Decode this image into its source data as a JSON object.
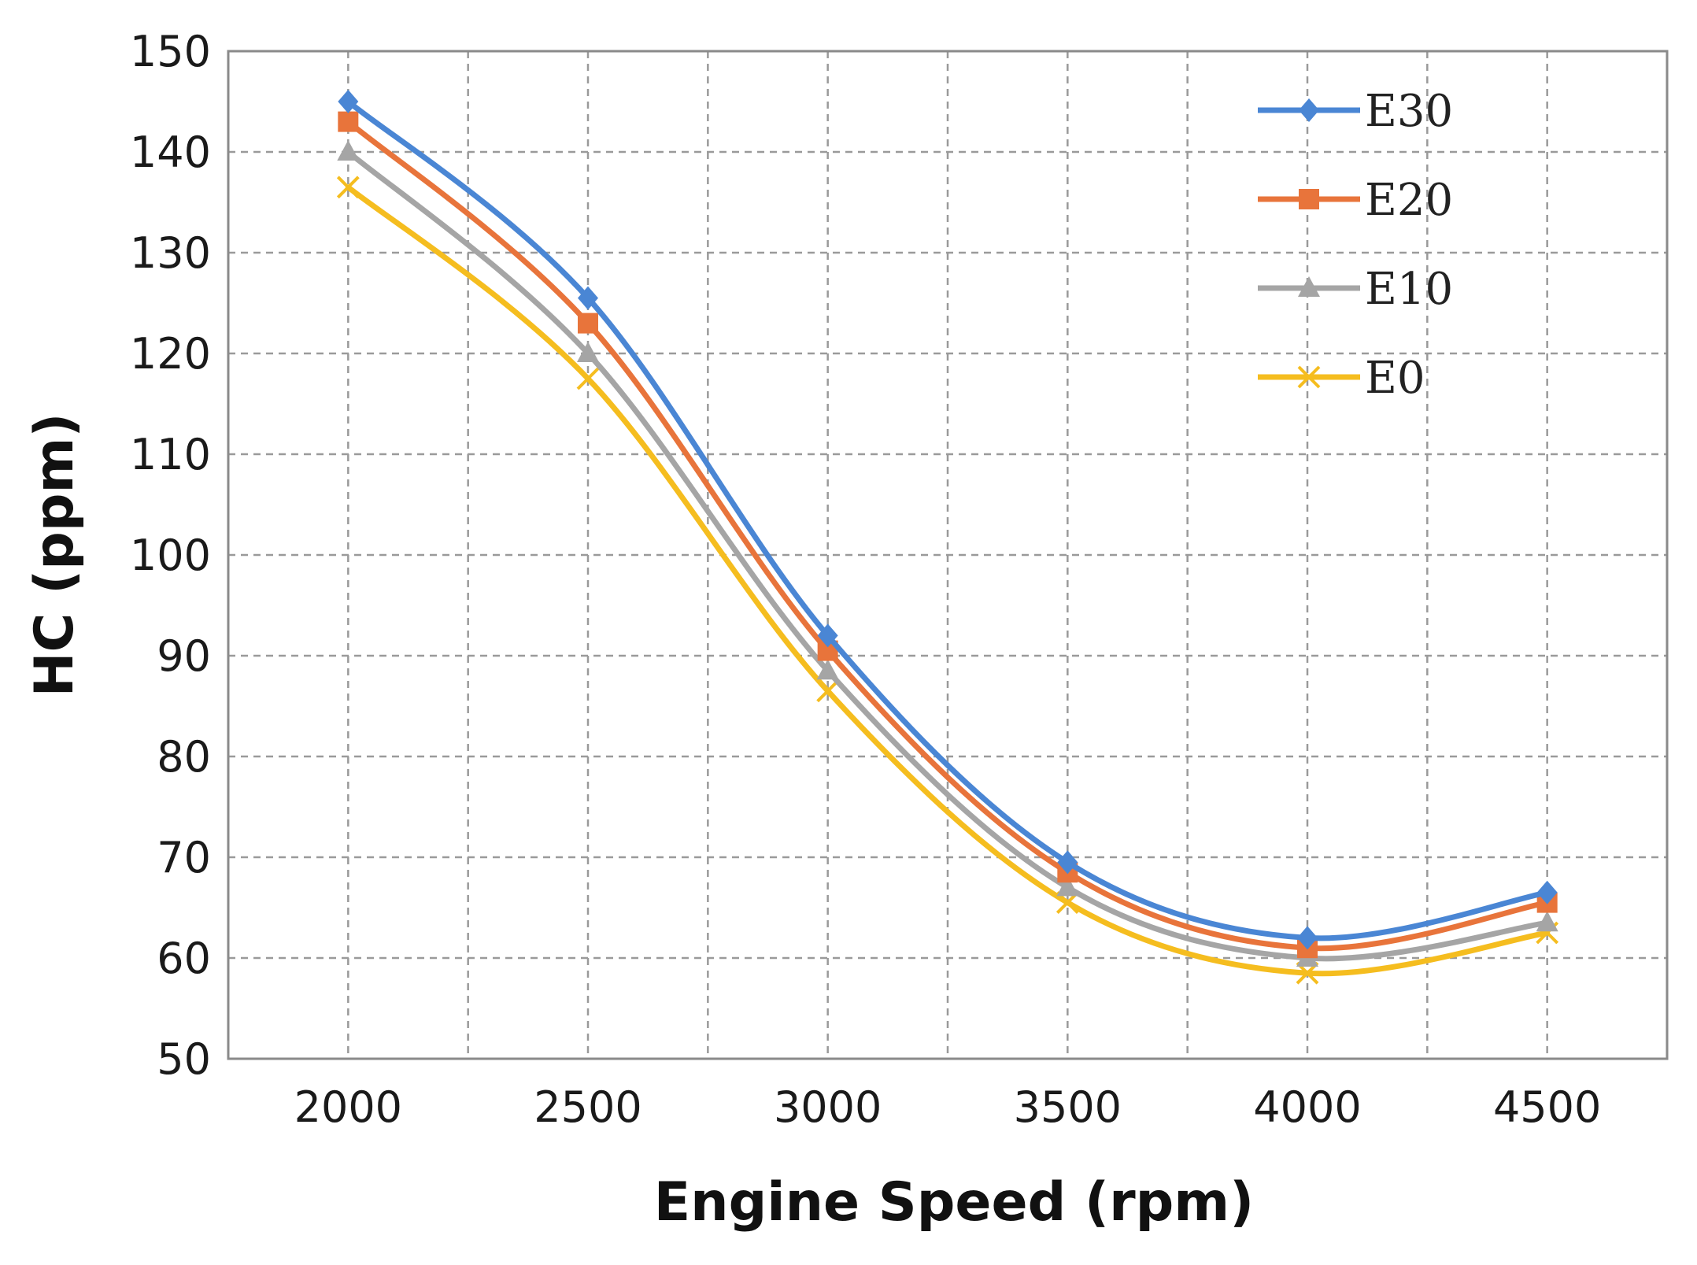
{
  "chart_data": {
    "type": "line",
    "title": "",
    "xlabel": "Engine Speed (rpm)",
    "ylabel": "HC (ppm)",
    "x": [
      2000,
      2500,
      3000,
      3500,
      4000,
      4500
    ],
    "x_tick_labels": [
      "2000",
      "2500",
      "3000",
      "3500",
      "4000",
      "4500"
    ],
    "xlim": [
      1750,
      4750
    ],
    "ylim": [
      50,
      150
    ],
    "y_ticks": [
      50,
      60,
      70,
      80,
      90,
      100,
      110,
      120,
      130,
      140,
      150
    ],
    "y_tick_labels": [
      "50",
      "60",
      "70",
      "80",
      "90",
      "100",
      "110",
      "120",
      "130",
      "140",
      "150"
    ],
    "grid": true,
    "legend_position": "top-right",
    "series": [
      {
        "name": "E30",
        "color": "#4a86d4",
        "marker": "diamond",
        "values": [
          145,
          125.5,
          92,
          69.5,
          62,
          66.5
        ]
      },
      {
        "name": "E20",
        "color": "#e8743b",
        "marker": "square",
        "values": [
          143,
          123,
          90.5,
          68.5,
          61,
          65.5
        ]
      },
      {
        "name": "E10",
        "color": "#a5a5a5",
        "marker": "triangle",
        "values": [
          140,
          120,
          88.5,
          67,
          60,
          63.5
        ]
      },
      {
        "name": "E0",
        "color": "#f5bd1f",
        "marker": "x",
        "values": [
          136.5,
          117.5,
          86.5,
          65.5,
          58.5,
          62.5
        ]
      }
    ]
  }
}
